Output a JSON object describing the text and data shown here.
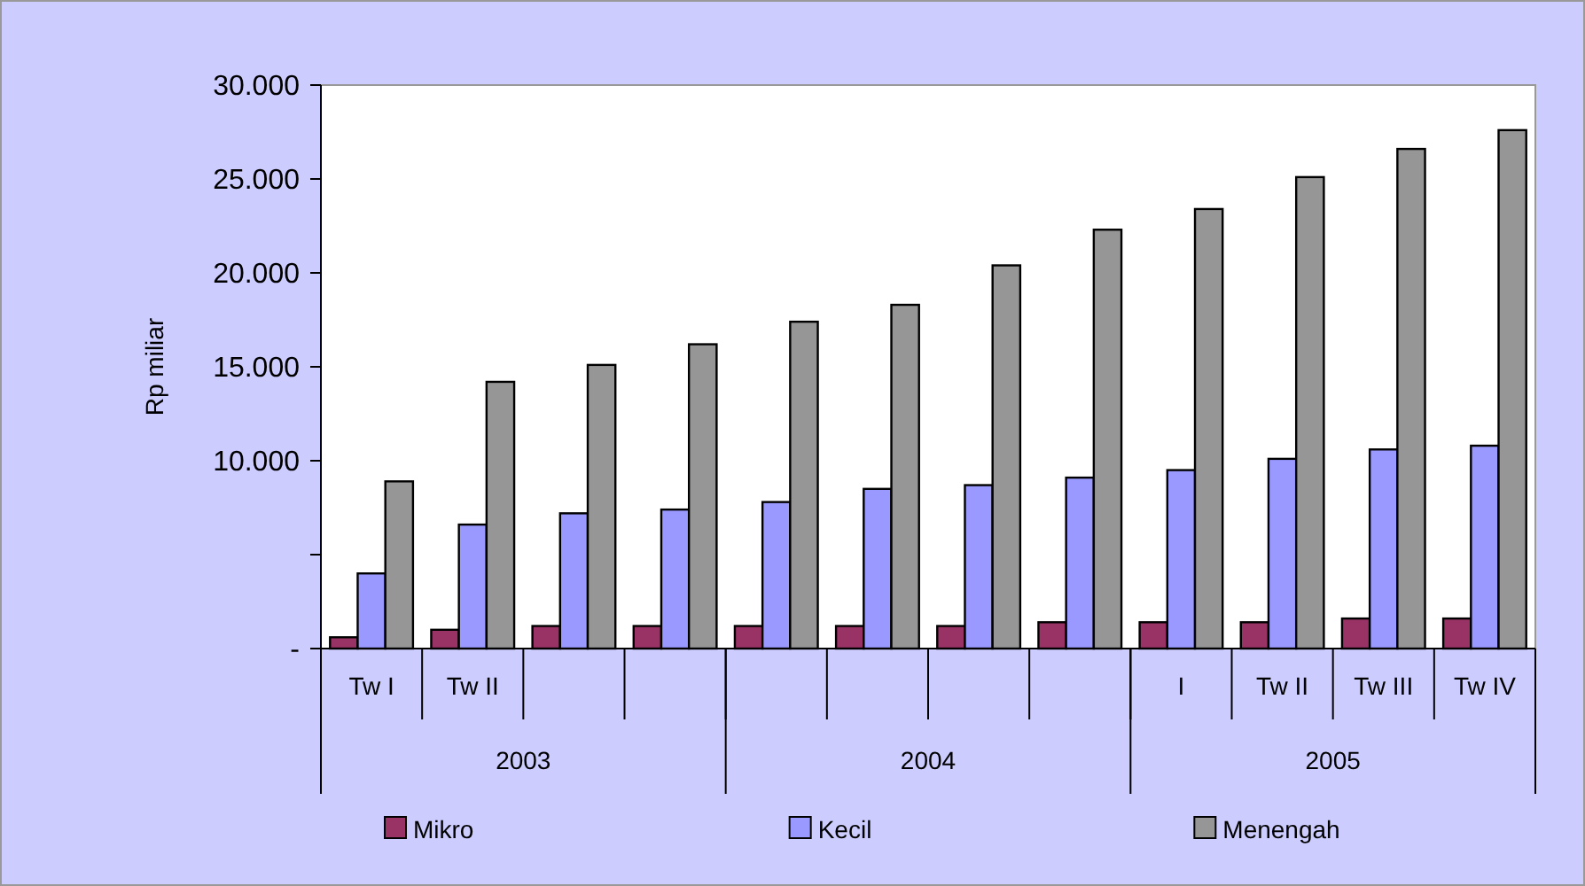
{
  "chart_data": {
    "type": "bar",
    "ylabel": "Rp miliar",
    "categories": [
      "Tw I",
      "Tw II",
      null,
      null,
      null,
      null,
      null,
      null,
      "I",
      "Tw II",
      "Tw III",
      "Tw IV"
    ],
    "series": [
      {
        "name": "Mikro",
        "color": "#993366",
        "values": [
          600,
          1000,
          1200,
          1200,
          1200,
          1200,
          1200,
          1400,
          1400,
          1400,
          1600,
          1600
        ]
      },
      {
        "name": "Kecil",
        "color": "#9999ff",
        "values": [
          4000,
          6600,
          7200,
          7400,
          7800,
          8500,
          8700,
          9100,
          9500,
          10100,
          10600,
          10800
        ]
      },
      {
        "name": "Menengah",
        "color": "#969696",
        "values": [
          8900,
          14200,
          15100,
          16200,
          17400,
          18300,
          20400,
          22300,
          23400,
          25100,
          26600,
          27600
        ]
      }
    ],
    "ylim": [
      0,
      30000
    ],
    "yticks": [
      {
        "value": 0,
        "label": "-"
      },
      {
        "value": 5000,
        "label": null
      },
      {
        "value": 10000,
        "label": "10.000"
      },
      {
        "value": 15000,
        "label": "15.000"
      },
      {
        "value": 20000,
        "label": "20.000"
      },
      {
        "value": 25000,
        "label": "25.000"
      },
      {
        "value": 30000,
        "label": "30.000"
      }
    ],
    "annotations": [
      "2003",
      "2004",
      "2005"
    ],
    "legend": "bottom"
  }
}
